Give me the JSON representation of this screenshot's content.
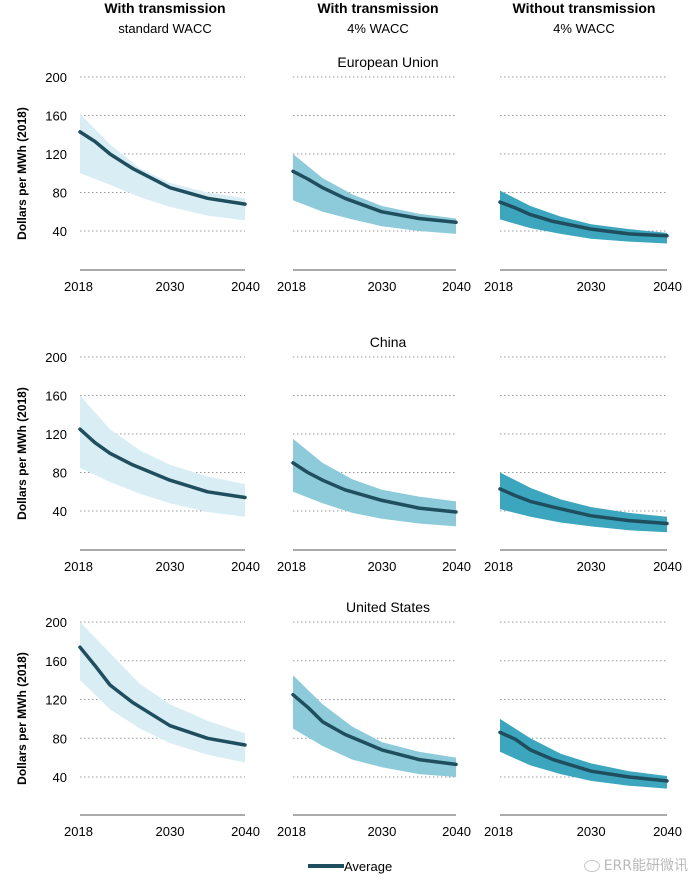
{
  "columns": [
    {
      "title": "With transmission",
      "subtitle": "standard WACC"
    },
    {
      "title": "With transmission",
      "subtitle": "4% WACC"
    },
    {
      "title": "Without transmission",
      "subtitle": "4% WACC"
    }
  ],
  "colors": {
    "band": [
      "#d9eef4",
      "#8dcbdb",
      "#3ba6bd"
    ],
    "average": "#1f4e5f",
    "grid": "#9a9a9a"
  },
  "legend": {
    "label": "Average"
  },
  "watermark": "ERR能研微讯",
  "chart_data": [
    {
      "type": "line",
      "region": "European Union",
      "column": 0,
      "title": "European Union",
      "ylabel": "Dollars per MWh (2018)",
      "x": [
        2018,
        2040
      ],
      "xticks": [
        2018,
        2030,
        2040
      ],
      "yticks": [
        40,
        80,
        120,
        160,
        200
      ],
      "ylim": [
        0,
        200
      ],
      "grid": true,
      "series": [
        {
          "name": "Average",
          "x": [
            2018,
            2020,
            2022,
            2025,
            2030,
            2035,
            2040
          ],
          "y": [
            143,
            133,
            120,
            105,
            85,
            74,
            68
          ]
        },
        {
          "role": "range",
          "x": [
            2018,
            2022,
            2026,
            2030,
            2035,
            2040
          ],
          "low": [
            100,
            88,
            75,
            65,
            56,
            51
          ],
          "high": [
            162,
            130,
            105,
            90,
            80,
            74
          ]
        }
      ]
    },
    {
      "type": "line",
      "region": "European Union",
      "column": 1,
      "x": [
        2018,
        2040
      ],
      "xticks": [
        2018,
        2030,
        2040
      ],
      "yticks": [
        40,
        80,
        120,
        160,
        200
      ],
      "ylim": [
        0,
        200
      ],
      "grid": true,
      "series": [
        {
          "name": "Average",
          "x": [
            2018,
            2020,
            2022,
            2025,
            2030,
            2035,
            2040
          ],
          "y": [
            102,
            94,
            85,
            74,
            60,
            53,
            49
          ]
        },
        {
          "role": "range",
          "x": [
            2018,
            2022,
            2026,
            2030,
            2035,
            2040
          ],
          "low": [
            72,
            60,
            52,
            45,
            40,
            37
          ],
          "high": [
            120,
            95,
            78,
            66,
            58,
            53
          ]
        }
      ]
    },
    {
      "type": "line",
      "region": "European Union",
      "column": 2,
      "x": [
        2018,
        2040
      ],
      "xticks": [
        2018,
        2030,
        2040
      ],
      "yticks": [
        40,
        80,
        120,
        160,
        200
      ],
      "ylim": [
        0,
        200
      ],
      "grid": true,
      "series": [
        {
          "name": "Average",
          "x": [
            2018,
            2020,
            2022,
            2025,
            2030,
            2035,
            2040
          ],
          "y": [
            70,
            64,
            57,
            50,
            42,
            37,
            35
          ]
        },
        {
          "role": "range",
          "x": [
            2018,
            2022,
            2026,
            2030,
            2035,
            2040
          ],
          "low": [
            52,
            43,
            37,
            32,
            29,
            27
          ],
          "high": [
            82,
            66,
            55,
            47,
            42,
            38
          ]
        }
      ]
    },
    {
      "type": "line",
      "region": "China",
      "column": 0,
      "title": "China",
      "ylabel": "Dollars per MWh (2018)",
      "x": [
        2018,
        2040
      ],
      "xticks": [
        2018,
        2030,
        2040
      ],
      "yticks": [
        40,
        80,
        120,
        160,
        200
      ],
      "ylim": [
        0,
        200
      ],
      "grid": true,
      "series": [
        {
          "name": "Average",
          "x": [
            2018,
            2020,
            2022,
            2025,
            2030,
            2035,
            2040
          ],
          "y": [
            125,
            111,
            100,
            88,
            72,
            60,
            54
          ]
        },
        {
          "role": "range",
          "x": [
            2018,
            2022,
            2026,
            2030,
            2035,
            2040
          ],
          "low": [
            85,
            70,
            58,
            48,
            39,
            34
          ],
          "high": [
            160,
            125,
            103,
            88,
            76,
            68
          ]
        }
      ]
    },
    {
      "type": "line",
      "region": "China",
      "column": 1,
      "x": [
        2018,
        2040
      ],
      "xticks": [
        2018,
        2030,
        2040
      ],
      "yticks": [
        40,
        80,
        120,
        160,
        200
      ],
      "ylim": [
        0,
        200
      ],
      "grid": true,
      "series": [
        {
          "name": "Average",
          "x": [
            2018,
            2020,
            2022,
            2025,
            2030,
            2035,
            2040
          ],
          "y": [
            90,
            80,
            72,
            62,
            51,
            43,
            39
          ]
        },
        {
          "role": "range",
          "x": [
            2018,
            2022,
            2026,
            2030,
            2035,
            2040
          ],
          "low": [
            60,
            48,
            38,
            32,
            27,
            24
          ],
          "high": [
            115,
            90,
            73,
            62,
            55,
            50
          ]
        }
      ]
    },
    {
      "type": "line",
      "region": "China",
      "column": 2,
      "x": [
        2018,
        2040
      ],
      "xticks": [
        2018,
        2030,
        2040
      ],
      "yticks": [
        40,
        80,
        120,
        160,
        200
      ],
      "ylim": [
        0,
        200
      ],
      "grid": true,
      "series": [
        {
          "name": "Average",
          "x": [
            2018,
            2020,
            2022,
            2025,
            2030,
            2035,
            2040
          ],
          "y": [
            63,
            56,
            50,
            44,
            35,
            30,
            27
          ]
        },
        {
          "role": "range",
          "x": [
            2018,
            2022,
            2026,
            2030,
            2035,
            2040
          ],
          "low": [
            42,
            34,
            28,
            24,
            20,
            18
          ],
          "high": [
            80,
            64,
            52,
            44,
            38,
            34
          ]
        }
      ]
    },
    {
      "type": "line",
      "region": "United States",
      "column": 0,
      "title": "United States",
      "ylabel": "Dollars per MWh (2018)",
      "x": [
        2018,
        2040
      ],
      "xticks": [
        2018,
        2030,
        2040
      ],
      "yticks": [
        40,
        80,
        120,
        160,
        200
      ],
      "ylim": [
        0,
        200
      ],
      "grid": true,
      "series": [
        {
          "name": "Average",
          "x": [
            2018,
            2020,
            2022,
            2025,
            2030,
            2035,
            2040
          ],
          "y": [
            174,
            155,
            135,
            117,
            93,
            80,
            73
          ]
        },
        {
          "role": "range",
          "x": [
            2018,
            2022,
            2026,
            2030,
            2035,
            2040
          ],
          "low": [
            140,
            110,
            90,
            75,
            63,
            55
          ],
          "high": [
            200,
            168,
            136,
            115,
            98,
            85
          ]
        }
      ]
    },
    {
      "type": "line",
      "region": "United States",
      "column": 1,
      "x": [
        2018,
        2040
      ],
      "xticks": [
        2018,
        2030,
        2040
      ],
      "yticks": [
        40,
        80,
        120,
        160,
        200
      ],
      "ylim": [
        0,
        200
      ],
      "grid": true,
      "series": [
        {
          "name": "Average",
          "x": [
            2018,
            2020,
            2022,
            2025,
            2030,
            2035,
            2040
          ],
          "y": [
            125,
            112,
            97,
            84,
            68,
            58,
            53
          ]
        },
        {
          "role": "range",
          "x": [
            2018,
            2022,
            2026,
            2030,
            2035,
            2040
          ],
          "low": [
            90,
            72,
            58,
            50,
            43,
            40
          ],
          "high": [
            145,
            115,
            92,
            76,
            66,
            60
          ]
        }
      ]
    },
    {
      "type": "line",
      "region": "United States",
      "column": 2,
      "x": [
        2018,
        2040
      ],
      "xticks": [
        2018,
        2030,
        2040
      ],
      "yticks": [
        40,
        80,
        120,
        160,
        200
      ],
      "ylim": [
        0,
        200
      ],
      "grid": true,
      "series": [
        {
          "name": "Average",
          "x": [
            2018,
            2020,
            2022,
            2025,
            2030,
            2035,
            2040
          ],
          "y": [
            86,
            79,
            68,
            58,
            46,
            40,
            36
          ]
        },
        {
          "role": "range",
          "x": [
            2018,
            2022,
            2026,
            2030,
            2035,
            2040
          ],
          "low": [
            66,
            52,
            43,
            36,
            31,
            28
          ],
          "high": [
            100,
            80,
            64,
            54,
            46,
            41
          ]
        }
      ]
    }
  ]
}
